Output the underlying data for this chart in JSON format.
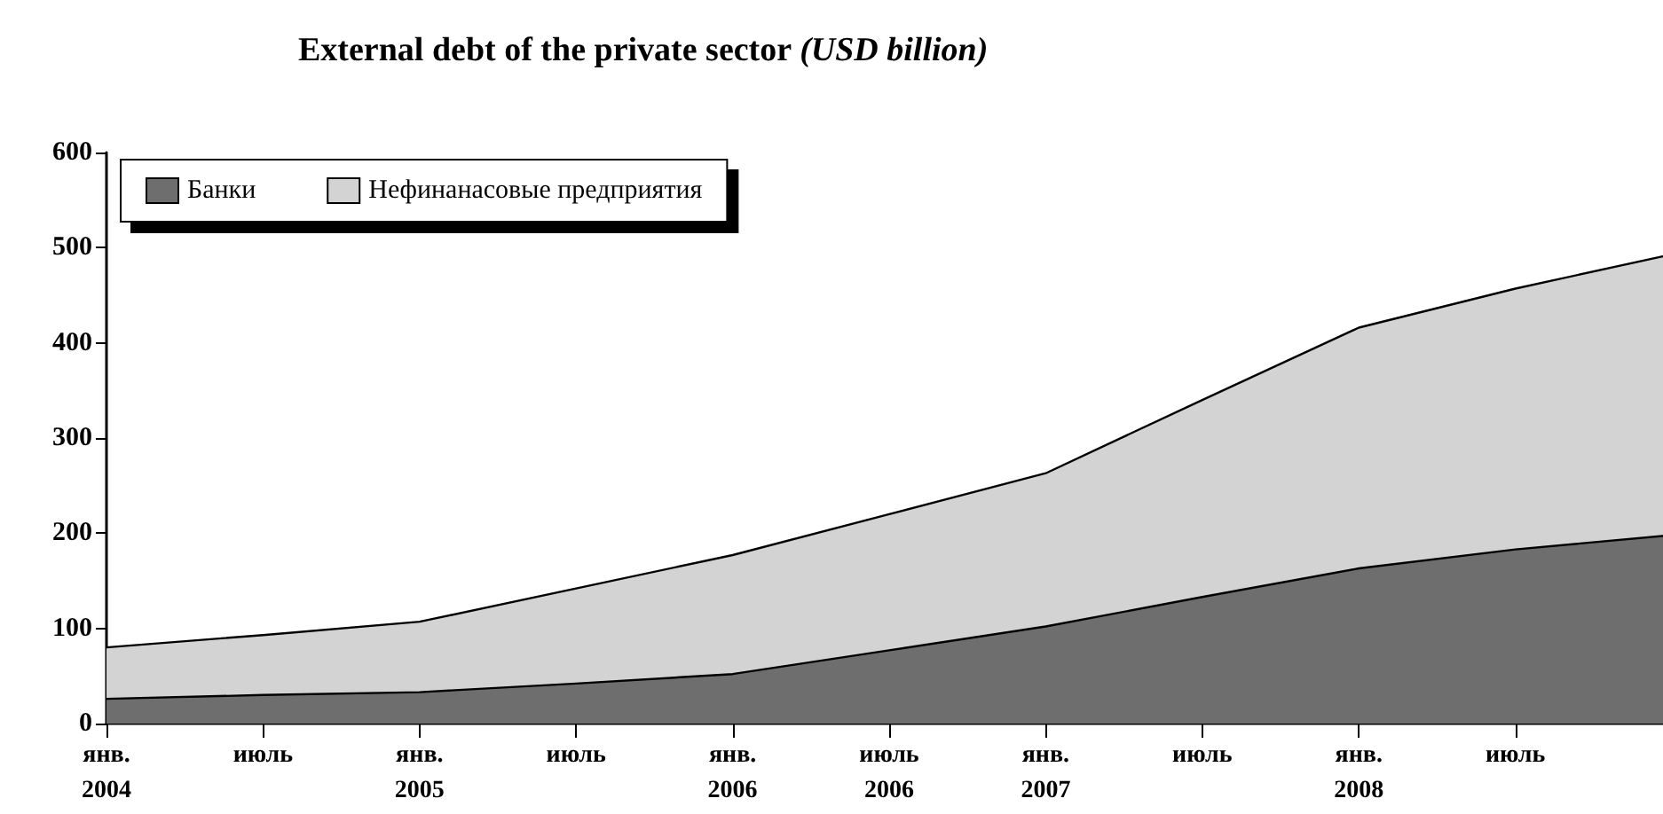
{
  "chart_data": {
    "type": "area",
    "stacked": true,
    "title": "External debt of the private sector",
    "subtitle": "(USD billion)",
    "categories": [
      "янв. 2004",
      "июль",
      "янв. 2005",
      "июль",
      "янв. 2006",
      "июль 2006",
      "янв. 2007",
      "июль",
      "янв. 2008",
      "июль",
      null
    ],
    "series": [
      {
        "name": "Банки",
        "color": "#6e6e6e",
        "values": [
          26,
          30,
          33,
          42,
          52,
          77,
          102,
          133,
          163,
          183,
          198
        ]
      },
      {
        "name": "Нефинанасовые предприятия",
        "color": "#d3d3d3",
        "values": [
          54,
          63,
          74,
          100,
          125,
          143,
          161,
          207,
          253,
          274,
          295
        ]
      }
    ],
    "ylim": [
      0,
      600
    ],
    "yticks": [
      0,
      100,
      200,
      300,
      400,
      500,
      600
    ],
    "grid": false,
    "legend": "top left"
  }
}
